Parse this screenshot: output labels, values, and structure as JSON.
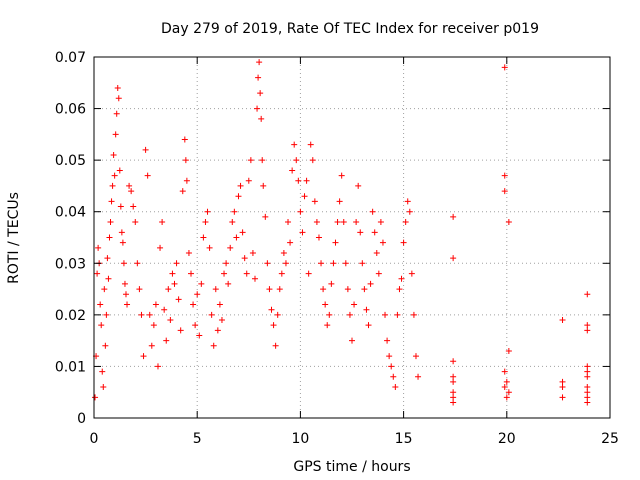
{
  "chart_data": {
    "type": "scatter",
    "title": "Day 279 of 2019, Rate Of TEC Index for receiver p019",
    "xlabel": "GPS time / hours",
    "ylabel": "ROTI / TECUs",
    "xlim": [
      0,
      25
    ],
    "ylim": [
      0,
      0.07
    ],
    "xticks": [
      0,
      5,
      10,
      15,
      20,
      25
    ],
    "yticks": [
      0,
      0.01,
      0.02,
      0.03,
      0.04,
      0.05,
      0.06,
      0.07
    ],
    "xtick_labels": [
      "0",
      "5",
      "10",
      "15",
      "20",
      "25"
    ],
    "ytick_labels": [
      "0",
      "0.01",
      "0.02",
      "0.03",
      "0.04",
      "0.05",
      "0.06",
      "0.07"
    ],
    "grid": true,
    "marker": "plus",
    "color": "#ff0000",
    "series": [
      {
        "points": [
          [
            0.05,
            0.004
          ],
          [
            0.1,
            0.012
          ],
          [
            0.15,
            0.028
          ],
          [
            0.2,
            0.033
          ],
          [
            0.25,
            0.03
          ],
          [
            0.3,
            0.022
          ],
          [
            0.35,
            0.018
          ],
          [
            0.4,
            0.009
          ],
          [
            0.45,
            0.006
          ],
          [
            0.5,
            0.025
          ],
          [
            0.55,
            0.014
          ],
          [
            0.6,
            0.02
          ],
          [
            0.65,
            0.031
          ],
          [
            0.7,
            0.027
          ],
          [
            0.75,
            0.035
          ],
          [
            0.8,
            0.038
          ],
          [
            0.85,
            0.042
          ],
          [
            0.9,
            0.045
          ],
          [
            0.95,
            0.051
          ],
          [
            1.0,
            0.047
          ],
          [
            1.05,
            0.055
          ],
          [
            1.1,
            0.059
          ],
          [
            1.15,
            0.064
          ],
          [
            1.2,
            0.062
          ],
          [
            1.25,
            0.048
          ],
          [
            1.3,
            0.041
          ],
          [
            1.35,
            0.036
          ],
          [
            1.4,
            0.034
          ],
          [
            1.45,
            0.03
          ],
          [
            1.5,
            0.026
          ],
          [
            1.55,
            0.024
          ],
          [
            1.6,
            0.022
          ],
          [
            1.7,
            0.045
          ],
          [
            1.8,
            0.044
          ],
          [
            1.9,
            0.041
          ],
          [
            2.0,
            0.038
          ],
          [
            2.1,
            0.03
          ],
          [
            2.2,
            0.025
          ],
          [
            2.3,
            0.02
          ],
          [
            2.4,
            0.012
          ],
          [
            2.5,
            0.052
          ],
          [
            2.6,
            0.047
          ],
          [
            2.7,
            0.02
          ],
          [
            2.8,
            0.014
          ],
          [
            2.9,
            0.018
          ],
          [
            3.0,
            0.022
          ],
          [
            3.1,
            0.01
          ],
          [
            3.2,
            0.033
          ],
          [
            3.3,
            0.038
          ],
          [
            3.4,
            0.021
          ],
          [
            3.5,
            0.015
          ],
          [
            3.6,
            0.025
          ],
          [
            3.7,
            0.019
          ],
          [
            3.8,
            0.028
          ],
          [
            3.9,
            0.026
          ],
          [
            4.0,
            0.03
          ],
          [
            4.1,
            0.023
          ],
          [
            4.2,
            0.017
          ],
          [
            4.3,
            0.044
          ],
          [
            4.4,
            0.054
          ],
          [
            4.45,
            0.05
          ],
          [
            4.5,
            0.046
          ],
          [
            4.6,
            0.032
          ],
          [
            4.7,
            0.028
          ],
          [
            4.8,
            0.022
          ],
          [
            4.9,
            0.018
          ],
          [
            5.0,
            0.024
          ],
          [
            5.1,
            0.016
          ],
          [
            5.2,
            0.026
          ],
          [
            5.3,
            0.035
          ],
          [
            5.4,
            0.038
          ],
          [
            5.5,
            0.04
          ],
          [
            5.6,
            0.033
          ],
          [
            5.7,
            0.02
          ],
          [
            5.8,
            0.014
          ],
          [
            5.9,
            0.025
          ],
          [
            6.0,
            0.017
          ],
          [
            6.1,
            0.022
          ],
          [
            6.2,
            0.019
          ],
          [
            6.3,
            0.028
          ],
          [
            6.4,
            0.03
          ],
          [
            6.5,
            0.026
          ],
          [
            6.6,
            0.033
          ],
          [
            6.7,
            0.038
          ],
          [
            6.8,
            0.04
          ],
          [
            6.9,
            0.035
          ],
          [
            7.0,
            0.043
          ],
          [
            7.1,
            0.045
          ],
          [
            7.2,
            0.036
          ],
          [
            7.3,
            0.031
          ],
          [
            7.4,
            0.028
          ],
          [
            7.5,
            0.046
          ],
          [
            7.6,
            0.05
          ],
          [
            7.7,
            0.032
          ],
          [
            7.8,
            0.027
          ],
          [
            7.9,
            0.06
          ],
          [
            7.95,
            0.066
          ],
          [
            8.0,
            0.069
          ],
          [
            8.05,
            0.063
          ],
          [
            8.1,
            0.058
          ],
          [
            8.15,
            0.05
          ],
          [
            8.2,
            0.045
          ],
          [
            8.3,
            0.039
          ],
          [
            8.4,
            0.03
          ],
          [
            8.5,
            0.025
          ],
          [
            8.6,
            0.021
          ],
          [
            8.7,
            0.018
          ],
          [
            8.8,
            0.014
          ],
          [
            8.9,
            0.02
          ],
          [
            9.0,
            0.025
          ],
          [
            9.1,
            0.028
          ],
          [
            9.2,
            0.032
          ],
          [
            9.3,
            0.03
          ],
          [
            9.4,
            0.038
          ],
          [
            9.5,
            0.034
          ],
          [
            9.6,
            0.048
          ],
          [
            9.7,
            0.053
          ],
          [
            9.8,
            0.05
          ],
          [
            9.9,
            0.046
          ],
          [
            10.0,
            0.04
          ],
          [
            10.1,
            0.036
          ],
          [
            10.2,
            0.043
          ],
          [
            10.3,
            0.046
          ],
          [
            10.4,
            0.028
          ],
          [
            10.5,
            0.053
          ],
          [
            10.6,
            0.05
          ],
          [
            10.7,
            0.042
          ],
          [
            10.8,
            0.038
          ],
          [
            10.9,
            0.035
          ],
          [
            11.0,
            0.03
          ],
          [
            11.1,
            0.025
          ],
          [
            11.2,
            0.022
          ],
          [
            11.3,
            0.018
          ],
          [
            11.4,
            0.02
          ],
          [
            11.5,
            0.026
          ],
          [
            11.6,
            0.03
          ],
          [
            11.7,
            0.034
          ],
          [
            11.8,
            0.038
          ],
          [
            11.9,
            0.042
          ],
          [
            12.0,
            0.047
          ],
          [
            12.1,
            0.038
          ],
          [
            12.2,
            0.03
          ],
          [
            12.3,
            0.025
          ],
          [
            12.4,
            0.02
          ],
          [
            12.5,
            0.015
          ],
          [
            12.6,
            0.022
          ],
          [
            12.7,
            0.038
          ],
          [
            12.8,
            0.045
          ],
          [
            12.9,
            0.036
          ],
          [
            13.0,
            0.03
          ],
          [
            13.1,
            0.025
          ],
          [
            13.2,
            0.021
          ],
          [
            13.3,
            0.018
          ],
          [
            13.4,
            0.026
          ],
          [
            13.5,
            0.04
          ],
          [
            13.6,
            0.036
          ],
          [
            13.7,
            0.032
          ],
          [
            13.8,
            0.028
          ],
          [
            13.9,
            0.038
          ],
          [
            14.0,
            0.034
          ],
          [
            14.1,
            0.02
          ],
          [
            14.2,
            0.015
          ],
          [
            14.3,
            0.012
          ],
          [
            14.4,
            0.01
          ],
          [
            14.5,
            0.008
          ],
          [
            14.6,
            0.006
          ],
          [
            14.7,
            0.02
          ],
          [
            14.8,
            0.025
          ],
          [
            14.9,
            0.027
          ],
          [
            15.0,
            0.034
          ],
          [
            15.1,
            0.038
          ],
          [
            15.2,
            0.042
          ],
          [
            15.3,
            0.04
          ],
          [
            15.4,
            0.028
          ],
          [
            15.5,
            0.02
          ],
          [
            15.6,
            0.012
          ],
          [
            15.7,
            0.008
          ],
          [
            17.4,
            0.039
          ],
          [
            17.4,
            0.031
          ],
          [
            17.4,
            0.011
          ],
          [
            17.4,
            0.008
          ],
          [
            17.4,
            0.007
          ],
          [
            17.4,
            0.005
          ],
          [
            17.4,
            0.004
          ],
          [
            17.4,
            0.003
          ],
          [
            19.9,
            0.068
          ],
          [
            19.9,
            0.047
          ],
          [
            19.9,
            0.044
          ],
          [
            20.1,
            0.038
          ],
          [
            20.1,
            0.013
          ],
          [
            19.9,
            0.009
          ],
          [
            20.0,
            0.007
          ],
          [
            19.9,
            0.006
          ],
          [
            20.1,
            0.005
          ],
          [
            20.0,
            0.004
          ],
          [
            22.7,
            0.019
          ],
          [
            22.7,
            0.007
          ],
          [
            22.7,
            0.006
          ],
          [
            22.7,
            0.004
          ],
          [
            23.9,
            0.024
          ],
          [
            23.9,
            0.018
          ],
          [
            23.9,
            0.017
          ],
          [
            23.9,
            0.01
          ],
          [
            23.9,
            0.009
          ],
          [
            23.9,
            0.008
          ],
          [
            23.9,
            0.006
          ],
          [
            23.9,
            0.005
          ],
          [
            23.9,
            0.004
          ],
          [
            23.9,
            0.003
          ]
        ]
      }
    ]
  }
}
